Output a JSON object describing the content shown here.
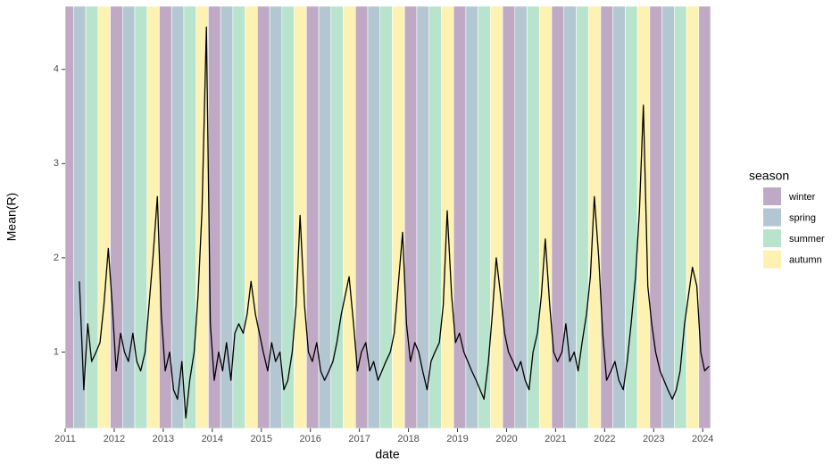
{
  "chart_data": {
    "type": "line",
    "x_label": "date",
    "y_label": "Mean(R)",
    "legend_title": "season",
    "xlim": [
      2011,
      2024.16
    ],
    "xticks": [
      2011,
      2012,
      2013,
      2014,
      2015,
      2016,
      2017,
      2018,
      2019,
      2020,
      2021,
      2022,
      2023,
      2024
    ],
    "ylim": [
      0.19,
      4.67
    ],
    "yticks": [
      1,
      2,
      3,
      4
    ],
    "grid": false,
    "legend_position": "right",
    "seasons": [
      {
        "name": "winter",
        "color": "#bfa9c4"
      },
      {
        "name": "spring",
        "color": "#b3c7d2"
      },
      {
        "name": "summer",
        "color": "#b8e3cc"
      },
      {
        "name": "autumn",
        "color": "#fdf2b1"
      }
    ],
    "bands": {
      "x": [
        2011,
        2011.17,
        2011.42,
        2011.67,
        2011.92,
        2012.17,
        2012.42,
        2012.67,
        2012.92,
        2013.17,
        2013.42,
        2013.67,
        2013.92,
        2014.17,
        2014.42,
        2014.67,
        2014.92,
        2015.17,
        2015.42,
        2015.67,
        2015.92,
        2016.17,
        2016.42,
        2016.67,
        2016.92,
        2017.17,
        2017.42,
        2017.67,
        2017.92,
        2018.17,
        2018.42,
        2018.67,
        2018.92,
        2019.17,
        2019.42,
        2019.67,
        2019.92,
        2020.17,
        2020.42,
        2020.67,
        2020.92,
        2021.17,
        2021.42,
        2021.67,
        2021.92,
        2022.17,
        2022.42,
        2022.67,
        2022.92,
        2023.17,
        2023.42,
        2023.67,
        2023.92
      ],
      "season": [
        "winter",
        "spring",
        "summer",
        "autumn",
        "winter",
        "spring",
        "summer",
        "autumn",
        "winter",
        "spring",
        "summer",
        "autumn",
        "winter",
        "spring",
        "summer",
        "autumn",
        "winter",
        "spring",
        "summer",
        "autumn",
        "winter",
        "spring",
        "summer",
        "autumn",
        "winter",
        "spring",
        "summer",
        "autumn",
        "winter",
        "spring",
        "summer",
        "autumn",
        "winter",
        "spring",
        "summer",
        "autumn",
        "winter",
        "spring",
        "summer",
        "autumn",
        "winter",
        "spring",
        "summer",
        "autumn",
        "winter",
        "spring",
        "summer",
        "autumn",
        "winter",
        "spring",
        "summer",
        "autumn",
        "winter"
      ]
    },
    "series": [
      {
        "color": "#000000",
        "x": [
          2011.29,
          2011.38,
          2011.46,
          2011.54,
          2011.63,
          2011.71,
          2011.79,
          2011.88,
          2011.96,
          2012.04,
          2012.13,
          2012.21,
          2012.29,
          2012.38,
          2012.46,
          2012.54,
          2012.63,
          2012.71,
          2012.79,
          2012.88,
          2012.96,
          2013.04,
          2013.13,
          2013.21,
          2013.29,
          2013.38,
          2013.46,
          2013.54,
          2013.63,
          2013.71,
          2013.79,
          2013.88,
          2013.96,
          2014.04,
          2014.13,
          2014.21,
          2014.29,
          2014.38,
          2014.46,
          2014.54,
          2014.63,
          2014.71,
          2014.79,
          2014.88,
          2014.96,
          2015.04,
          2015.13,
          2015.21,
          2015.29,
          2015.38,
          2015.46,
          2015.54,
          2015.63,
          2015.71,
          2015.79,
          2015.88,
          2015.96,
          2016.04,
          2016.13,
          2016.21,
          2016.29,
          2016.38,
          2016.46,
          2016.54,
          2016.63,
          2016.71,
          2016.79,
          2016.88,
          2016.96,
          2017.04,
          2017.13,
          2017.21,
          2017.29,
          2017.38,
          2017.46,
          2017.54,
          2017.63,
          2017.71,
          2017.79,
          2017.88,
          2017.96,
          2018.04,
          2018.13,
          2018.21,
          2018.29,
          2018.38,
          2018.46,
          2018.54,
          2018.63,
          2018.71,
          2018.79,
          2018.88,
          2018.96,
          2019.04,
          2019.13,
          2019.21,
          2019.29,
          2019.38,
          2019.46,
          2019.54,
          2019.63,
          2019.71,
          2019.79,
          2019.88,
          2019.96,
          2020.04,
          2020.13,
          2020.21,
          2020.29,
          2020.38,
          2020.46,
          2020.54,
          2020.63,
          2020.71,
          2020.79,
          2020.88,
          2020.96,
          2021.04,
          2021.13,
          2021.21,
          2021.29,
          2021.38,
          2021.46,
          2021.54,
          2021.63,
          2021.71,
          2021.79,
          2021.88,
          2021.96,
          2022.04,
          2022.13,
          2022.21,
          2022.29,
          2022.38,
          2022.46,
          2022.54,
          2022.63,
          2022.71,
          2022.79,
          2022.88,
          2022.96,
          2023.04,
          2023.13,
          2023.21,
          2023.29,
          2023.38,
          2023.46,
          2023.54,
          2023.63,
          2023.71,
          2023.79,
          2023.88,
          2023.96,
          2024.04,
          2024.13
        ],
        "values": [
          1.75,
          0.6,
          1.3,
          0.9,
          1.0,
          1.1,
          1.5,
          2.1,
          1.5,
          0.8,
          1.2,
          1.0,
          0.9,
          1.2,
          0.9,
          0.8,
          1.0,
          1.5,
          2.0,
          2.65,
          1.4,
          0.8,
          1.0,
          0.6,
          0.5,
          0.9,
          0.3,
          0.7,
          1.0,
          1.6,
          2.5,
          4.45,
          1.3,
          0.7,
          1.0,
          0.8,
          1.1,
          0.7,
          1.2,
          1.3,
          1.2,
          1.4,
          1.75,
          1.4,
          1.2,
          1.0,
          0.8,
          1.1,
          0.9,
          1.0,
          0.6,
          0.7,
          1.0,
          1.5,
          2.45,
          1.5,
          1.0,
          0.9,
          1.1,
          0.8,
          0.7,
          0.8,
          0.9,
          1.1,
          1.4,
          1.6,
          1.8,
          1.3,
          0.8,
          1.0,
          1.1,
          0.8,
          0.9,
          0.7,
          0.8,
          0.9,
          1.0,
          1.2,
          1.7,
          2.27,
          1.3,
          0.9,
          1.1,
          1.0,
          0.8,
          0.6,
          0.9,
          1.0,
          1.1,
          1.5,
          2.5,
          1.6,
          1.1,
          1.2,
          1.0,
          0.9,
          0.8,
          0.7,
          0.6,
          0.5,
          0.9,
          1.4,
          2.0,
          1.6,
          1.2,
          1.0,
          0.9,
          0.8,
          0.9,
          0.7,
          0.6,
          1.0,
          1.2,
          1.6,
          2.2,
          1.5,
          1.0,
          0.9,
          1.0,
          1.3,
          0.9,
          1.0,
          0.8,
          1.1,
          1.4,
          1.8,
          2.65,
          2.0,
          1.2,
          0.7,
          0.8,
          0.9,
          0.7,
          0.6,
          0.9,
          1.3,
          1.8,
          2.5,
          3.62,
          1.7,
          1.3,
          1.0,
          0.8,
          0.7,
          0.6,
          0.5,
          0.6,
          0.8,
          1.3,
          1.6,
          1.9,
          1.7,
          1.0,
          0.8,
          0.85
        ]
      }
    ]
  }
}
